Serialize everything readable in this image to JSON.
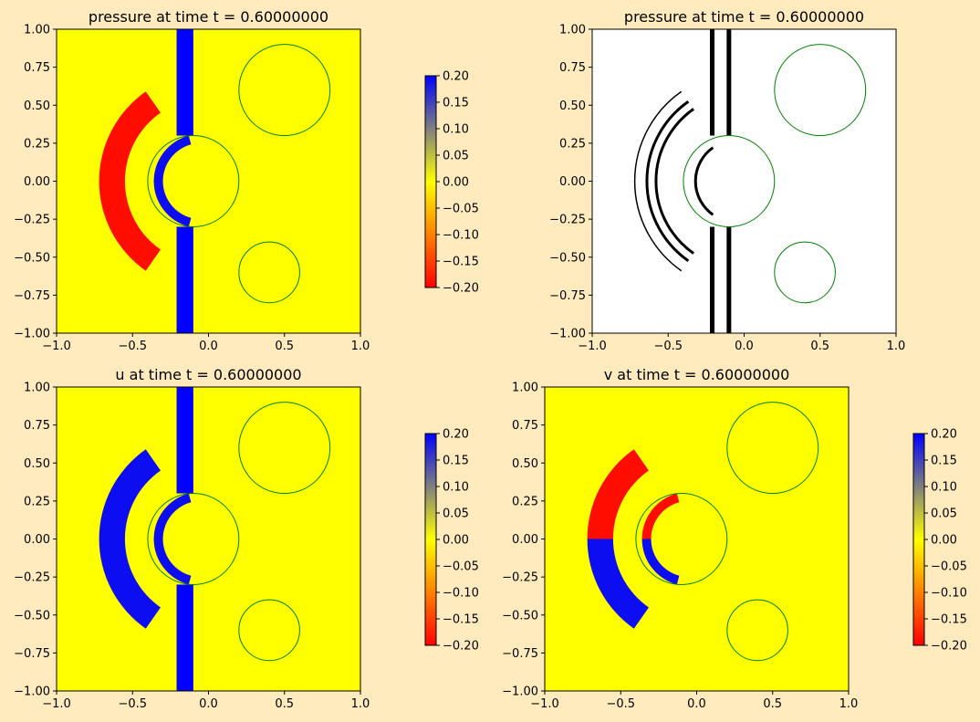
{
  "figure": {
    "background": "#ffebbd"
  },
  "chart_data": [
    {
      "type": "heatmap",
      "title": "pressure at time t =      0.60000000",
      "field": "pressure",
      "time": 0.6,
      "xlim": [
        -1.0,
        1.0
      ],
      "ylim": [
        -1.0,
        1.0
      ],
      "xticks": [
        "−1.0",
        "−0.5",
        "0.0",
        "0.5",
        "1.0"
      ],
      "yticks": [
        "1.00",
        "0.75",
        "0.50",
        "0.25",
        "0.00",
        "−0.25",
        "−0.50",
        "−0.75",
        "−1.00"
      ],
      "colorbar": {
        "min": -0.2,
        "max": 0.2,
        "ticks": [
          "0.20",
          "0.15",
          "0.10",
          "0.05",
          "0.00",
          "−0.05",
          "−0.10",
          "−0.15",
          "−0.20"
        ],
        "colors": [
          "#ff0000",
          "#ffff00",
          "#0000ff"
        ]
      },
      "background_value": 0.0,
      "background_color": "#ffff00",
      "features": [
        {
          "shape": "vertical_band",
          "x_range": [
            -0.21,
            -0.1
          ],
          "y_range": [
            -1.0,
            1.0
          ],
          "value": 0.2,
          "except_y": [
            -0.3,
            0.3
          ]
        },
        {
          "shape": "annulus_arc",
          "center": [
            0.0,
            0.0
          ],
          "r_inner": 0.55,
          "r_outer": 0.72,
          "angle_range_deg": [
            125,
            235
          ],
          "value": -0.2
        },
        {
          "shape": "annulus_arc",
          "center": [
            -0.05,
            0.0
          ],
          "r_inner": 0.25,
          "r_outer": 0.31,
          "angle_range_deg": [
            105,
            255
          ],
          "value": 0.2
        }
      ],
      "circles": [
        {
          "center": [
            0.5,
            0.6
          ],
          "radius": 0.3
        },
        {
          "center": [
            -0.1,
            0.0
          ],
          "radius": 0.3
        },
        {
          "center": [
            0.4,
            -0.6
          ],
          "radius": 0.2
        }
      ],
      "circle_color": "#008000"
    },
    {
      "type": "contour",
      "title": "pressure at time t =      0.60000000",
      "field": "pressure",
      "time": 0.6,
      "xlim": [
        -1.0,
        1.0
      ],
      "ylim": [
        -1.0,
        1.0
      ],
      "xticks": [
        "−1.0",
        "−0.5",
        "0.0",
        "0.5",
        "1.0"
      ],
      "yticks": [
        "1.00",
        "0.75",
        "0.50",
        "0.25",
        "0.00",
        "−0.25",
        "−0.50",
        "−0.75",
        "−1.00"
      ],
      "contour_color": "#000000",
      "background_color": "#ffffff",
      "contour_lines": [
        {
          "shape": "vertical",
          "x": -0.21
        },
        {
          "shape": "vertical",
          "x": -0.1
        },
        {
          "shape": "arc",
          "center": [
            0.0,
            0.0
          ],
          "radius": 0.58
        },
        {
          "shape": "arc",
          "center": [
            0.0,
            0.0
          ],
          "radius": 0.64
        },
        {
          "shape": "arc",
          "center": [
            0.0,
            0.0
          ],
          "radius": 0.72
        },
        {
          "shape": "arc",
          "center": [
            -0.05,
            0.0
          ],
          "radius": 0.27
        }
      ],
      "circles": [
        {
          "center": [
            0.5,
            0.6
          ],
          "radius": 0.3
        },
        {
          "center": [
            -0.1,
            0.0
          ],
          "radius": 0.3
        },
        {
          "center": [
            0.4,
            -0.6
          ],
          "radius": 0.2
        }
      ],
      "circle_color": "#008000"
    },
    {
      "type": "heatmap",
      "title": "u at time t =      0.60000000",
      "field": "u",
      "time": 0.6,
      "xlim": [
        -1.0,
        1.0
      ],
      "ylim": [
        -1.0,
        1.0
      ],
      "xticks": [
        "−1.0",
        "−0.5",
        "0.0",
        "0.5",
        "1.0"
      ],
      "yticks": [
        "1.00",
        "0.75",
        "0.50",
        "0.25",
        "0.00",
        "−0.25",
        "−0.50",
        "−0.75",
        "−1.00"
      ],
      "colorbar": {
        "min": -0.2,
        "max": 0.2,
        "ticks": [
          "0.20",
          "0.15",
          "0.10",
          "0.05",
          "0.00",
          "−0.05",
          "−0.10",
          "−0.15",
          "−0.20"
        ],
        "colors": [
          "#ff0000",
          "#ffff00",
          "#0000ff"
        ]
      },
      "background_value": 0.0,
      "background_color": "#ffff00",
      "features": [
        {
          "shape": "vertical_band",
          "x_range": [
            -0.21,
            -0.1
          ],
          "y_range": [
            -1.0,
            1.0
          ],
          "value": 0.2,
          "except_y": [
            -0.3,
            0.3
          ]
        },
        {
          "shape": "annulus_arc",
          "center": [
            0.0,
            0.0
          ],
          "r_inner": 0.55,
          "r_outer": 0.72,
          "angle_range_deg": [
            125,
            235
          ],
          "value": 0.2
        },
        {
          "shape": "annulus_arc",
          "center": [
            -0.05,
            0.0
          ],
          "r_inner": 0.25,
          "r_outer": 0.31,
          "angle_range_deg": [
            105,
            255
          ],
          "value": 0.2
        }
      ],
      "circles": [
        {
          "center": [
            0.5,
            0.6
          ],
          "radius": 0.3
        },
        {
          "center": [
            -0.1,
            0.0
          ],
          "radius": 0.3
        },
        {
          "center": [
            0.4,
            -0.6
          ],
          "radius": 0.2
        }
      ],
      "circle_color": "#008000"
    },
    {
      "type": "heatmap",
      "title": "v at time t =      0.60000000",
      "field": "v",
      "time": 0.6,
      "xlim": [
        -1.0,
        1.0
      ],
      "ylim": [
        -1.0,
        1.0
      ],
      "xticks": [
        "−1.0",
        "−0.5",
        "0.0",
        "0.5",
        "1.0"
      ],
      "yticks": [
        "1.00",
        "0.75",
        "0.50",
        "0.25",
        "0.00",
        "−0.25",
        "−0.50",
        "−0.75",
        "−1.00"
      ],
      "colorbar": {
        "min": -0.2,
        "max": 0.2,
        "ticks": [
          "0.20",
          "0.15",
          "0.10",
          "0.05",
          "0.00",
          "−0.05",
          "−0.10",
          "−0.15",
          "−0.20"
        ],
        "colors": [
          "#ff0000",
          "#ffff00",
          "#0000ff"
        ]
      },
      "background_value": 0.0,
      "background_color": "#ffff00",
      "features": [
        {
          "shape": "annulus_arc",
          "center": [
            0.0,
            0.0
          ],
          "r_inner": 0.55,
          "r_outer": 0.72,
          "angle_range_deg": [
            125,
            180
          ],
          "value": -0.2,
          "note": "upper lobe"
        },
        {
          "shape": "annulus_arc",
          "center": [
            0.0,
            0.0
          ],
          "r_inner": 0.55,
          "r_outer": 0.72,
          "angle_range_deg": [
            180,
            235
          ],
          "value": 0.2,
          "note": "lower lobe"
        },
        {
          "shape": "annulus_arc",
          "center": [
            -0.05,
            0.0
          ],
          "r_inner": 0.25,
          "r_outer": 0.31,
          "angle_range_deg": [
            105,
            180
          ],
          "value": -0.2
        },
        {
          "shape": "annulus_arc",
          "center": [
            -0.05,
            0.0
          ],
          "r_inner": 0.25,
          "r_outer": 0.31,
          "angle_range_deg": [
            180,
            255
          ],
          "value": 0.2
        }
      ],
      "circles": [
        {
          "center": [
            0.5,
            0.6
          ],
          "radius": 0.3
        },
        {
          "center": [
            -0.1,
            0.0
          ],
          "radius": 0.3
        },
        {
          "center": [
            0.4,
            -0.6
          ],
          "radius": 0.2
        }
      ],
      "circle_color": "#008000"
    }
  ]
}
